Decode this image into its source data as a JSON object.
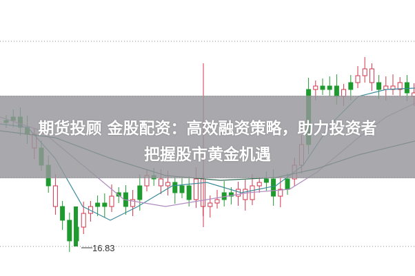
{
  "headline": {
    "line1": "期货投顾 金股配资：高效融资策略，助力投资者",
    "line2": "把握股市黄金机遇"
  },
  "chart": {
    "low_price_label": "16.83",
    "colors": {
      "up": "#d0334a",
      "down": "#1f9a2e",
      "ma1": "#3a8a9a",
      "ma2": "#b08ac0",
      "ma3": "#2a6a50",
      "banner": "#96969b"
    }
  }
}
